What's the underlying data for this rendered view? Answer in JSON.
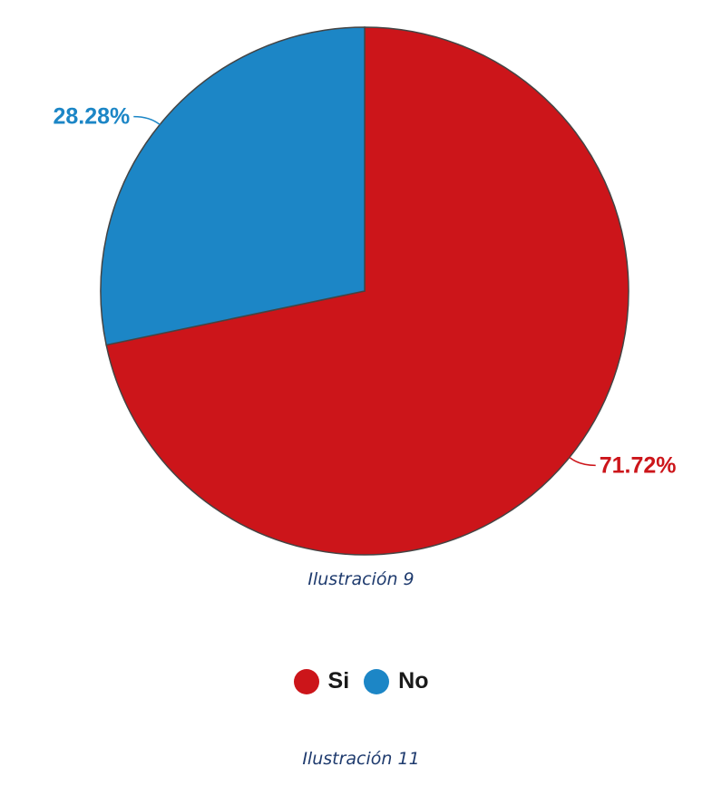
{
  "chart_data": {
    "type": "pie",
    "slices": [
      {
        "name": "Si",
        "value": 71.72,
        "label": "71.72%",
        "color": "#cc151a"
      },
      {
        "name": "No",
        "value": 28.28,
        "label": "28.28%",
        "color": "#1c86c6"
      }
    ],
    "legend": {
      "placement": "bottom-center",
      "entries": [
        "Si",
        "No"
      ]
    }
  },
  "captions": {
    "figure_caption": "Ilustración 9",
    "bottom_caption": "Ilustración 11"
  }
}
